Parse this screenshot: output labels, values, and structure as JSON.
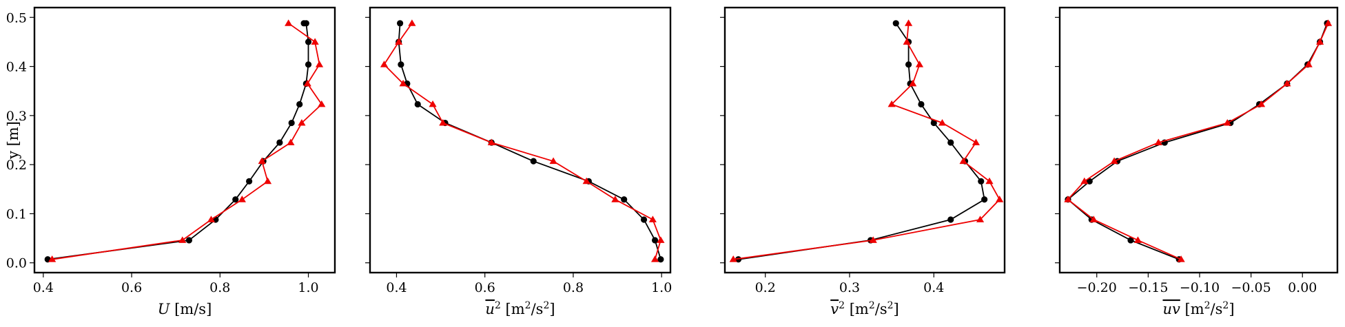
{
  "chart_data": [
    {
      "type": "line",
      "xlabel": "U [m/s]",
      "ylabel": "y [m]",
      "xlim": [
        0.38,
        1.06
      ],
      "ylim": [
        -0.02,
        0.52
      ],
      "xticks": [
        0.4,
        0.6,
        0.8,
        1.0
      ],
      "xtick_labels": [
        "0.4",
        "0.6",
        "0.8",
        "1.0"
      ],
      "yticks": [
        0.0,
        0.1,
        0.2,
        0.3,
        0.4,
        0.5
      ],
      "ytick_labels": [
        "0.0",
        "0.1",
        "0.2",
        "0.3",
        "0.4",
        "0.5"
      ],
      "series": [
        {
          "color": "#000000",
          "marker": "circle",
          "x": [
            0.41,
            0.73,
            0.79,
            0.835,
            0.866,
            0.898,
            0.935,
            0.962,
            0.98,
            0.995,
            1.0,
            1.0,
            0.995,
            0.99
          ],
          "y": [
            0.007,
            0.046,
            0.088,
            0.129,
            0.166,
            0.207,
            0.245,
            0.285,
            0.323,
            0.365,
            0.404,
            0.45,
            0.488,
            0.488
          ]
        },
        {
          "color": "#ee0000",
          "marker": "triangle",
          "x": [
            0.42,
            0.715,
            0.78,
            0.85,
            0.908,
            0.895,
            0.96,
            0.985,
            1.03,
            0.998,
            1.025,
            1.015,
            0.955
          ],
          "y": [
            0.007,
            0.046,
            0.088,
            0.129,
            0.166,
            0.207,
            0.245,
            0.285,
            0.323,
            0.365,
            0.404,
            0.45,
            0.488
          ]
        }
      ]
    },
    {
      "type": "line",
      "xlabel": "ū² [m²/s²]",
      "xlabel_var": "u",
      "xlabel_unit": "[m²/s²]",
      "ylabel": "",
      "xlim": [
        0.34,
        1.02
      ],
      "ylim": [
        -0.02,
        0.52
      ],
      "xticks": [
        0.4,
        0.6,
        0.8,
        1.0
      ],
      "xtick_labels": [
        "0.4",
        "0.6",
        "0.8",
        "1.0"
      ],
      "yticks": [
        0.0,
        0.1,
        0.2,
        0.3,
        0.4,
        0.5
      ],
      "ytick_labels": [],
      "series": [
        {
          "color": "#000000",
          "marker": "circle",
          "x": [
            0.998,
            0.985,
            0.96,
            0.915,
            0.835,
            0.71,
            0.615,
            0.51,
            0.448,
            0.424,
            0.41,
            0.405,
            0.408
          ],
          "y": [
            0.007,
            0.046,
            0.088,
            0.129,
            0.166,
            0.207,
            0.245,
            0.285,
            0.323,
            0.365,
            0.404,
            0.45,
            0.488
          ]
        },
        {
          "color": "#ee0000",
          "marker": "triangle",
          "x": [
            0.985,
            0.998,
            0.98,
            0.895,
            0.83,
            0.755,
            0.615,
            0.505,
            0.482,
            0.415,
            0.372,
            0.405,
            0.435
          ],
          "y": [
            0.007,
            0.046,
            0.088,
            0.129,
            0.166,
            0.207,
            0.245,
            0.285,
            0.323,
            0.365,
            0.404,
            0.45,
            0.488
          ]
        }
      ]
    },
    {
      "type": "line",
      "xlabel": "v̄² [m²/s²]",
      "xlabel_var": "v",
      "xlabel_unit": "[m²/s²]",
      "ylabel": "",
      "xlim": [
        0.152,
        0.484
      ],
      "ylim": [
        -0.02,
        0.52
      ],
      "xticks": [
        0.2,
        0.3,
        0.4
      ],
      "xtick_labels": [
        "0.2",
        "0.3",
        "0.4"
      ],
      "yticks": [
        0.0,
        0.1,
        0.2,
        0.3,
        0.4,
        0.5
      ],
      "ytick_labels": [],
      "series": [
        {
          "color": "#000000",
          "marker": "circle",
          "x": [
            0.168,
            0.325,
            0.42,
            0.46,
            0.456,
            0.437,
            0.42,
            0.4,
            0.385,
            0.372,
            0.37,
            0.37,
            0.355
          ],
          "y": [
            0.007,
            0.046,
            0.088,
            0.129,
            0.166,
            0.207,
            0.245,
            0.285,
            0.323,
            0.365,
            0.404,
            0.45,
            0.488
          ]
        },
        {
          "color": "#ee0000",
          "marker": "triangle",
          "x": [
            0.162,
            0.328,
            0.455,
            0.478,
            0.466,
            0.435,
            0.45,
            0.41,
            0.35,
            0.375,
            0.383,
            0.368,
            0.37
          ],
          "y": [
            0.007,
            0.046,
            0.088,
            0.129,
            0.166,
            0.207,
            0.245,
            0.285,
            0.323,
            0.365,
            0.404,
            0.45,
            0.488
          ]
        }
      ]
    },
    {
      "type": "line",
      "xlabel": "ūv̄ [m²/s²]",
      "xlabel_var": "uv",
      "xlabel_unit": "[m²/s²]",
      "ylabel": "",
      "xlim": [
        -0.236,
        0.034
      ],
      "ylim": [
        -0.02,
        0.52
      ],
      "xticks": [
        -0.2,
        -0.15,
        -0.1,
        -0.05,
        0.0
      ],
      "xtick_labels": [
        "−0.20",
        "−0.15",
        "−0.10",
        "−0.05",
        "0.00"
      ],
      "yticks": [
        0.0,
        0.1,
        0.2,
        0.3,
        0.4,
        0.5
      ],
      "ytick_labels": [],
      "series": [
        {
          "color": "#000000",
          "marker": "circle",
          "x": [
            -0.12,
            -0.167,
            -0.205,
            -0.228,
            -0.207,
            -0.18,
            -0.134,
            -0.07,
            -0.042,
            -0.015,
            0.005,
            0.017,
            0.024
          ],
          "y": [
            0.007,
            0.046,
            0.088,
            0.129,
            0.166,
            0.207,
            0.245,
            0.285,
            0.323,
            0.365,
            0.404,
            0.45,
            0.488
          ]
        },
        {
          "color": "#ee0000",
          "marker": "triangle",
          "x": [
            -0.118,
            -0.16,
            -0.203,
            -0.228,
            -0.212,
            -0.183,
            -0.14,
            -0.073,
            -0.04,
            -0.015,
            0.006,
            0.017,
            0.025
          ],
          "y": [
            0.007,
            0.046,
            0.088,
            0.129,
            0.166,
            0.207,
            0.245,
            0.285,
            0.323,
            0.365,
            0.404,
            0.45,
            0.488
          ]
        }
      ]
    }
  ]
}
